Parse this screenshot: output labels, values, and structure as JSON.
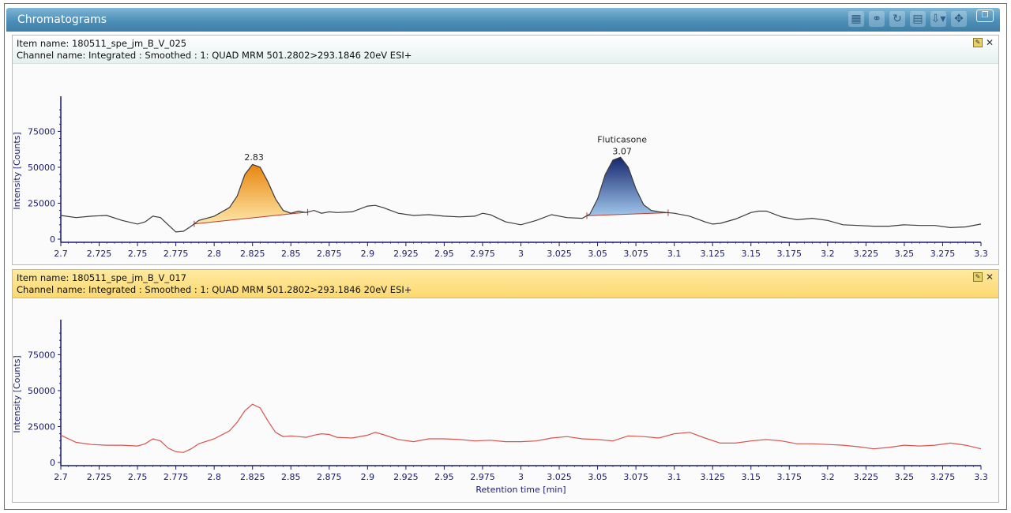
{
  "window": {
    "title": "Chromatograms",
    "toolbar_icons": [
      "peak-list-icon",
      "link-icon",
      "refresh-icon",
      "table-icon",
      "export-icon",
      "move-icon"
    ]
  },
  "panels": [
    {
      "item_label": "Item name: 180511_spe_jm_B_V_025",
      "channel_label": "Channel name: Integrated : Smoothed :  1: QUAD MRM 501.2802>293.1846 20eV ESI+",
      "header_color": "#e6f0f0"
    },
    {
      "item_label": "Item name: 180511_spe_jm_B_V_017",
      "channel_label": "Channel name: Integrated : Smoothed :  1: QUAD MRM 501.2802>293.1846 20eV ESI+",
      "header_color": "#fcd870"
    }
  ],
  "chart_data": [
    {
      "type": "line",
      "ylabel": "Intensity [Counts]",
      "xlabel": "",
      "xlim": [
        2.7,
        3.3
      ],
      "ylim": [
        0,
        95000
      ],
      "x_ticks": [
        "2.7",
        "2.725",
        "2.75",
        "2.775",
        "2.8",
        "2.825",
        "2.85",
        "2.875",
        "2.9",
        "2.925",
        "2.95",
        "2.975",
        "3",
        "3.025",
        "3.05",
        "3.075",
        "3.1",
        "3.125",
        "3.15",
        "3.175",
        "3.2",
        "3.225",
        "3.25",
        "3.275",
        "3.3"
      ],
      "y_ticks": [
        "0",
        "25000",
        "50000",
        "75000"
      ],
      "line_color": "#3a3a3a",
      "x": [
        2.7,
        2.71,
        2.72,
        2.73,
        2.74,
        2.75,
        2.755,
        2.76,
        2.765,
        2.77,
        2.775,
        2.78,
        2.785,
        2.79,
        2.8,
        2.81,
        2.815,
        2.82,
        2.825,
        2.83,
        2.835,
        2.84,
        2.845,
        2.85,
        2.855,
        2.86,
        2.865,
        2.87,
        2.875,
        2.88,
        2.89,
        2.9,
        2.905,
        2.91,
        2.92,
        2.93,
        2.94,
        2.95,
        2.96,
        2.97,
        2.975,
        2.98,
        2.99,
        3.0,
        3.01,
        3.02,
        3.03,
        3.04,
        3.045,
        3.05,
        3.055,
        3.06,
        3.065,
        3.07,
        3.075,
        3.08,
        3.085,
        3.09,
        3.095,
        3.1,
        3.11,
        3.12,
        3.125,
        3.13,
        3.14,
        3.15,
        3.155,
        3.16,
        3.17,
        3.18,
        3.19,
        3.2,
        3.21,
        3.22,
        3.23,
        3.24,
        3.25,
        3.26,
        3.27,
        3.28,
        3.29,
        3.3
      ],
      "y": [
        16500,
        15000,
        16000,
        16500,
        13000,
        10500,
        12000,
        16000,
        15000,
        10000,
        5000,
        5500,
        9000,
        13000,
        16000,
        22000,
        30000,
        45000,
        52000,
        50000,
        40000,
        28000,
        20000,
        18000,
        19500,
        18500,
        20000,
        18000,
        19000,
        18500,
        19000,
        23000,
        23500,
        22000,
        18000,
        16500,
        17000,
        16000,
        15500,
        16000,
        18000,
        17000,
        12000,
        10000,
        13000,
        17000,
        15000,
        14500,
        17500,
        28000,
        45000,
        55000,
        57000,
        50000,
        35000,
        24000,
        20000,
        19000,
        18500,
        18000,
        16000,
        12000,
        10500,
        11000,
        14000,
        18500,
        19500,
        19500,
        15500,
        13500,
        14500,
        13000,
        10000,
        9500,
        9000,
        9000,
        10000,
        9500,
        9500,
        8000,
        8500,
        10500
      ],
      "peaks": [
        {
          "rt_label": "2.83",
          "name": "",
          "start": 2.787,
          "end": 2.861,
          "apex": 2.826,
          "fill": "orange"
        },
        {
          "rt_label": "3.07",
          "name": "Fluticasone",
          "start": 3.043,
          "end": 3.096,
          "apex": 3.066,
          "fill": "navy"
        }
      ]
    },
    {
      "type": "line",
      "ylabel": "Intensity [Counts]",
      "xlabel": "Retention time [min]",
      "xlim": [
        2.7,
        3.3
      ],
      "ylim": [
        0,
        95000
      ],
      "x_ticks": [
        "2.7",
        "2.725",
        "2.75",
        "2.775",
        "2.8",
        "2.825",
        "2.85",
        "2.875",
        "2.9",
        "2.925",
        "2.95",
        "2.975",
        "3",
        "3.025",
        "3.05",
        "3.075",
        "3.1",
        "3.125",
        "3.15",
        "3.175",
        "3.2",
        "3.225",
        "3.25",
        "3.275",
        "3.3"
      ],
      "y_ticks": [
        "0",
        "25000",
        "50000",
        "75000"
      ],
      "line_color": "#d9534f",
      "x": [
        2.7,
        2.71,
        2.72,
        2.73,
        2.74,
        2.75,
        2.755,
        2.76,
        2.765,
        2.77,
        2.775,
        2.78,
        2.785,
        2.79,
        2.8,
        2.81,
        2.815,
        2.82,
        2.825,
        2.83,
        2.835,
        2.84,
        2.845,
        2.85,
        2.855,
        2.86,
        2.865,
        2.87,
        2.875,
        2.88,
        2.89,
        2.9,
        2.905,
        2.91,
        2.92,
        2.93,
        2.94,
        2.95,
        2.96,
        2.97,
        2.98,
        2.99,
        3.0,
        3.01,
        3.02,
        3.03,
        3.04,
        3.05,
        3.06,
        3.07,
        3.08,
        3.09,
        3.1,
        3.11,
        3.12,
        3.13,
        3.14,
        3.15,
        3.16,
        3.17,
        3.18,
        3.19,
        3.2,
        3.21,
        3.22,
        3.23,
        3.24,
        3.25,
        3.26,
        3.27,
        3.28,
        3.29,
        3.3
      ],
      "y": [
        19000,
        14000,
        12500,
        12000,
        12000,
        11500,
        13000,
        16500,
        15000,
        10000,
        7500,
        7000,
        9500,
        13000,
        16500,
        22000,
        28000,
        36000,
        40500,
        38000,
        29000,
        21000,
        18000,
        18500,
        18000,
        17500,
        19000,
        20000,
        19500,
        17500,
        17000,
        19000,
        21000,
        19500,
        16000,
        14500,
        16500,
        16500,
        16000,
        15000,
        15500,
        14500,
        14500,
        15000,
        17000,
        18000,
        16500,
        16000,
        15000,
        18500,
        18000,
        17000,
        20000,
        21000,
        17000,
        13500,
        13500,
        15000,
        16000,
        15000,
        13000,
        13000,
        12500,
        12000,
        11000,
        9500,
        10500,
        12000,
        11500,
        12000,
        13500,
        12000,
        9500
      ]
    }
  ]
}
